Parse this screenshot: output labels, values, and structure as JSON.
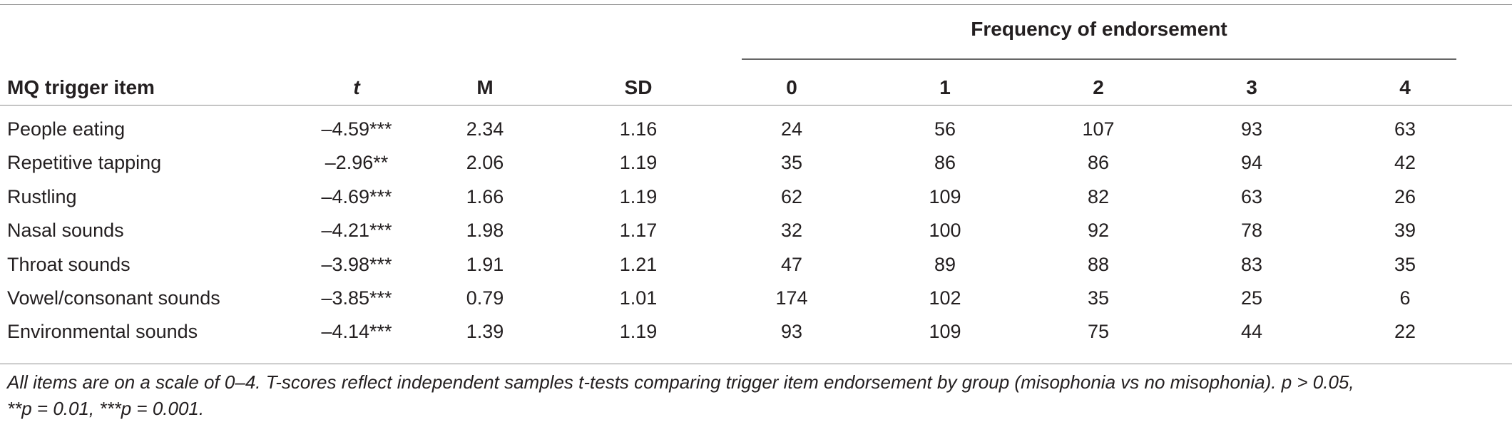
{
  "group_header": "Frequency of endorsement",
  "columns": [
    "MQ trigger item",
    "t",
    "M",
    "SD",
    "0",
    "1",
    "2",
    "3",
    "4"
  ],
  "rows": [
    [
      "People eating",
      "–4.59***",
      "2.34",
      "1.16",
      "24",
      "56",
      "107",
      "93",
      "63"
    ],
    [
      "Repetitive tapping",
      "–2.96**",
      "2.06",
      "1.19",
      "35",
      "86",
      "86",
      "94",
      "42"
    ],
    [
      "Rustling",
      "–4.69***",
      "1.66",
      "1.19",
      "62",
      "109",
      "82",
      "63",
      "26"
    ],
    [
      "Nasal sounds",
      "–4.21***",
      "1.98",
      "1.17",
      "32",
      "100",
      "92",
      "78",
      "39"
    ],
    [
      "Throat sounds",
      "–3.98***",
      "1.91",
      "1.21",
      "47",
      "89",
      "88",
      "83",
      "35"
    ],
    [
      "Vowel/consonant sounds",
      "–3.85***",
      "0.79",
      "1.01",
      "174",
      "102",
      "35",
      "25",
      "6"
    ],
    [
      "Environmental sounds",
      "–4.14***",
      "1.39",
      "1.19",
      "93",
      "109",
      "75",
      "44",
      "22"
    ]
  ],
  "footnote_line1": "All items are on a scale of 0–4. T-scores reflect independent samples t-tests comparing trigger item endorsement by group (misophonia vs no misophonia). p > 0.05,",
  "footnote_line2": "**p = 0.01, ***p = 0.001."
}
